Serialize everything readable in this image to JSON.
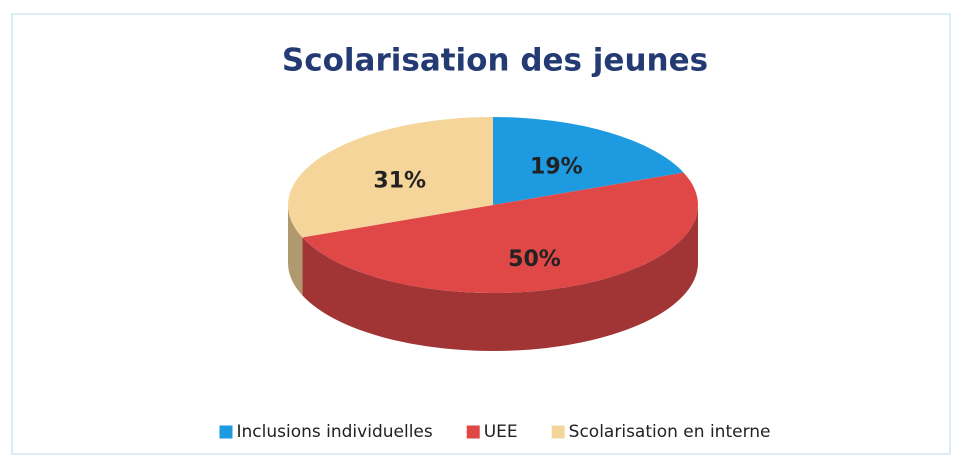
{
  "chart_data": {
    "type": "pie3d",
    "title": "Scolarisation des jeunes",
    "categories": [
      "Inclusions individuelles",
      "UEE",
      "Scolarisation en interne"
    ],
    "values": [
      19,
      50,
      31
    ],
    "value_labels": [
      "19%",
      "50%",
      "31%"
    ],
    "colors": [
      "#1e9be0",
      "#e04848",
      "#f5d59a"
    ],
    "legend": "bottom"
  }
}
